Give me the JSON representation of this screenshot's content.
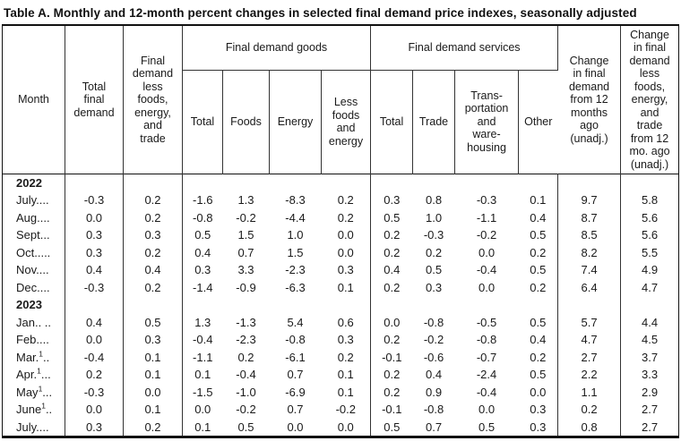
{
  "title": "Table A. Monthly and 12-month percent changes in selected final demand price indexes, seasonally adjusted",
  "header": {
    "month": "Month",
    "total_final_demand": "Total\nfinal\ndemand",
    "fd_less_fet": "Final\ndemand\nless\nfoods,\nenergy,\nand\ntrade",
    "goods": {
      "group": "Final demand goods",
      "sub": [
        "Total",
        "Foods",
        "Energy",
        "Less\nfoods\nand\nenergy"
      ]
    },
    "services": {
      "group": "Final demand services",
      "sub": [
        "Total",
        "Trade",
        "Trans-\nportation\nand\nware-\nhousing",
        "Other"
      ]
    },
    "change_12mo": "Change\nin final\ndemand\nfrom 12\nmonths\nago\n(unadj.)",
    "change_less_12mo": "Change\nin final\ndemand\nless\nfoods,\nenergy,\nand\ntrade\nfrom 12\nmo. ago\n(unadj.)"
  },
  "sections": [
    {
      "year": "2022",
      "rows": [
        {
          "name": "July",
          "sup": "",
          "dots": "....",
          "values": [
            "-0.3",
            "0.2",
            "-1.6",
            "1.3",
            "-8.3",
            "0.2",
            "0.3",
            "0.8",
            "-0.3",
            "0.1",
            "9.7",
            "5.8"
          ]
        },
        {
          "name": "Aug",
          "sup": "",
          "dots": "....",
          "values": [
            "0.0",
            "0.2",
            "-0.8",
            "-0.2",
            "-4.4",
            "0.2",
            "0.5",
            "1.0",
            "-1.1",
            "0.4",
            "8.7",
            "5.6"
          ]
        },
        {
          "name": "Sept",
          "sup": "",
          "dots": "...",
          "values": [
            "0.3",
            "0.3",
            "0.5",
            "1.5",
            "1.0",
            "0.0",
            "0.2",
            "-0.3",
            "-0.2",
            "0.5",
            "8.5",
            "5.6"
          ]
        },
        {
          "name": "Oct",
          "sup": "",
          "dots": ".....",
          "values": [
            "0.3",
            "0.2",
            "0.4",
            "0.7",
            "1.5",
            "0.0",
            "0.2",
            "0.2",
            "0.0",
            "0.2",
            "8.2",
            "5.5"
          ]
        },
        {
          "name": "Nov",
          "sup": "",
          "dots": "....",
          "values": [
            "0.4",
            "0.4",
            "0.3",
            "3.3",
            "-2.3",
            "0.3",
            "0.4",
            "0.5",
            "-0.4",
            "0.5",
            "7.4",
            "4.9"
          ]
        },
        {
          "name": "Dec",
          "sup": "",
          "dots": "....",
          "values": [
            "-0.3",
            "0.2",
            "-1.4",
            "-0.9",
            "-6.3",
            "0.1",
            "0.2",
            "0.3",
            "0.0",
            "0.2",
            "6.4",
            "4.7"
          ]
        }
      ]
    },
    {
      "year": "2023",
      "rows": [
        {
          "name": "Jan",
          "sup": "",
          "dots": ".. ..",
          "values": [
            "0.4",
            "0.5",
            "1.3",
            "-1.3",
            "5.4",
            "0.6",
            "0.0",
            "-0.8",
            "-0.5",
            "0.5",
            "5.7",
            "4.4"
          ]
        },
        {
          "name": "Feb",
          "sup": "",
          "dots": "....",
          "values": [
            "0.0",
            "0.3",
            "-0.4",
            "-2.3",
            "-0.8",
            "0.3",
            "0.2",
            "-0.2",
            "-0.8",
            "0.4",
            "4.7",
            "4.5"
          ]
        },
        {
          "name": "Mar.",
          "sup": "1",
          "dots": "..",
          "values": [
            "-0.4",
            "0.1",
            "-1.1",
            "0.2",
            "-6.1",
            "0.2",
            "-0.1",
            "-0.6",
            "-0.7",
            "0.2",
            "2.7",
            "3.7"
          ]
        },
        {
          "name": "Apr.",
          "sup": "1",
          "dots": "...",
          "values": [
            "0.2",
            "0.1",
            "0.1",
            "-0.4",
            "0.7",
            "0.1",
            "0.2",
            "0.4",
            "-2.4",
            "0.5",
            "2.2",
            "3.3"
          ]
        },
        {
          "name": "May",
          "sup": "1",
          "dots": "...",
          "values": [
            "-0.3",
            "0.0",
            "-1.5",
            "-1.0",
            "-6.9",
            "0.1",
            "0.2",
            "0.9",
            "-0.4",
            "0.0",
            "1.1",
            "2.9"
          ]
        },
        {
          "name": "June",
          "sup": "1",
          "dots": "..",
          "values": [
            "0.0",
            "0.1",
            "0.0",
            "-0.2",
            "0.7",
            "-0.2",
            "-0.1",
            "-0.8",
            "0.0",
            "0.3",
            "0.2",
            "2.7"
          ]
        },
        {
          "name": "July",
          "sup": "",
          "dots": "....",
          "values": [
            "0.3",
            "0.2",
            "0.1",
            "0.5",
            "0.0",
            "0.0",
            "0.5",
            "0.7",
            "0.5",
            "0.3",
            "0.8",
            "2.7"
          ]
        }
      ]
    }
  ]
}
